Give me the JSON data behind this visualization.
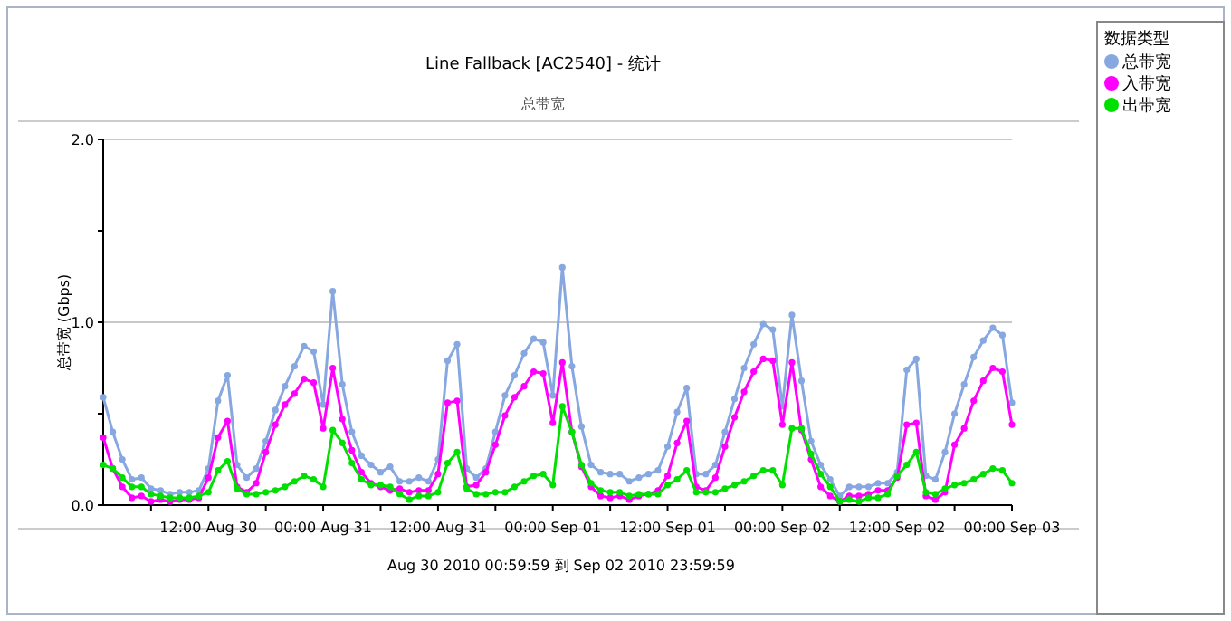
{
  "chart_data": {
    "type": "line",
    "title": "Line Fallback [AC2540] - 统计",
    "subtitle": "总带宽",
    "ylabel": "总带宽 (Gbps)",
    "legend_title": "数据类型",
    "legend": "top right",
    "grid": "y",
    "marker": "circle",
    "line_style": "solid",
    "annotations": [
      "Aug 30 2010  00:59:59 到 Sep 02 2010  23:59:59"
    ],
    "xlim": [
      "2010-08-30T01:00",
      "2010-09-03T00:00"
    ],
    "xticks": [
      {
        "value": "2010-08-30T06:00",
        "label": null
      },
      {
        "value": "2010-08-30T12:00",
        "label": "12:00 Aug 30"
      },
      {
        "value": "2010-08-30T18:00",
        "label": null
      },
      {
        "value": "2010-08-31T00:00",
        "label": "00:00 Aug 31"
      },
      {
        "value": "2010-08-31T06:00",
        "label": null
      },
      {
        "value": "2010-08-31T12:00",
        "label": "12:00 Aug 31"
      },
      {
        "value": "2010-08-31T18:00",
        "label": null
      },
      {
        "value": "2010-09-01T00:00",
        "label": "00:00 Sep 01"
      },
      {
        "value": "2010-09-01T06:00",
        "label": null
      },
      {
        "value": "2010-09-01T12:00",
        "label": "12:00 Sep 01"
      },
      {
        "value": "2010-09-01T18:00",
        "label": null
      },
      {
        "value": "2010-09-02T00:00",
        "label": "00:00 Sep 02"
      },
      {
        "value": "2010-09-02T06:00",
        "label": null
      },
      {
        "value": "2010-09-02T12:00",
        "label": "12:00 Sep 02"
      },
      {
        "value": "2010-09-02T18:00",
        "label": null
      },
      {
        "value": "2010-09-03T00:00",
        "label": "00:00 Sep 03"
      }
    ],
    "ylim": [
      0,
      2
    ],
    "yticks": [
      {
        "value": 0,
        "label": "0.0"
      },
      {
        "value": 0.5,
        "label": null
      },
      {
        "value": 1,
        "label": "1.0"
      },
      {
        "value": 1.5,
        "label": null
      },
      {
        "value": 2,
        "label": "2.0"
      }
    ],
    "x": [
      "2010-08-30T01:00",
      "2010-08-30T02:00",
      "2010-08-30T03:00",
      "2010-08-30T04:00",
      "2010-08-30T05:00",
      "2010-08-30T06:00",
      "2010-08-30T07:00",
      "2010-08-30T08:00",
      "2010-08-30T09:00",
      "2010-08-30T10:00",
      "2010-08-30T11:00",
      "2010-08-30T12:00",
      "2010-08-30T13:00",
      "2010-08-30T14:00",
      "2010-08-30T15:00",
      "2010-08-30T16:00",
      "2010-08-30T17:00",
      "2010-08-30T18:00",
      "2010-08-30T19:00",
      "2010-08-30T20:00",
      "2010-08-30T21:00",
      "2010-08-30T22:00",
      "2010-08-30T23:00",
      "2010-08-31T00:00",
      "2010-08-31T01:00",
      "2010-08-31T02:00",
      "2010-08-31T03:00",
      "2010-08-31T04:00",
      "2010-08-31T05:00",
      "2010-08-31T06:00",
      "2010-08-31T07:00",
      "2010-08-31T08:00",
      "2010-08-31T09:00",
      "2010-08-31T10:00",
      "2010-08-31T11:00",
      "2010-08-31T12:00",
      "2010-08-31T13:00",
      "2010-08-31T14:00",
      "2010-08-31T15:00",
      "2010-08-31T16:00",
      "2010-08-31T17:00",
      "2010-08-31T18:00",
      "2010-08-31T19:00",
      "2010-08-31T20:00",
      "2010-08-31T21:00",
      "2010-08-31T22:00",
      "2010-08-31T23:00",
      "2010-09-01T00:00",
      "2010-09-01T01:00",
      "2010-09-01T02:00",
      "2010-09-01T03:00",
      "2010-09-01T04:00",
      "2010-09-01T05:00",
      "2010-09-01T06:00",
      "2010-09-01T07:00",
      "2010-09-01T08:00",
      "2010-09-01T09:00",
      "2010-09-01T10:00",
      "2010-09-01T11:00",
      "2010-09-01T12:00",
      "2010-09-01T13:00",
      "2010-09-01T14:00",
      "2010-09-01T15:00",
      "2010-09-01T16:00",
      "2010-09-01T17:00",
      "2010-09-01T18:00",
      "2010-09-01T19:00",
      "2010-09-01T20:00",
      "2010-09-01T21:00",
      "2010-09-01T22:00",
      "2010-09-01T23:00",
      "2010-09-02T00:00",
      "2010-09-02T01:00",
      "2010-09-02T02:00",
      "2010-09-02T03:00",
      "2010-09-02T04:00",
      "2010-09-02T05:00",
      "2010-09-02T06:00",
      "2010-09-02T07:00",
      "2010-09-02T08:00",
      "2010-09-02T09:00",
      "2010-09-02T10:00",
      "2010-09-02T11:00",
      "2010-09-02T12:00",
      "2010-09-02T13:00",
      "2010-09-02T14:00",
      "2010-09-02T15:00",
      "2010-09-02T16:00",
      "2010-09-02T17:00",
      "2010-09-02T18:00",
      "2010-09-02T19:00",
      "2010-09-02T20:00",
      "2010-09-02T21:00",
      "2010-09-02T22:00",
      "2010-09-02T23:00",
      "2010-09-03T00:00"
    ],
    "series": [
      {
        "name": "总带宽",
        "color": "#87a7e0",
        "values": [
          0.59,
          0.4,
          0.25,
          0.14,
          0.15,
          0.09,
          0.08,
          0.06,
          0.07,
          0.07,
          0.08,
          0.2,
          0.57,
          0.71,
          0.22,
          0.15,
          0.2,
          0.35,
          0.52,
          0.65,
          0.76,
          0.87,
          0.84,
          0.55,
          1.17,
          0.66,
          0.4,
          0.27,
          0.22,
          0.18,
          0.21,
          0.13,
          0.13,
          0.15,
          0.13,
          0.25,
          0.79,
          0.88,
          0.2,
          0.15,
          0.2,
          0.4,
          0.6,
          0.71,
          0.83,
          0.91,
          0.89,
          0.6,
          1.3,
          0.76,
          0.43,
          0.22,
          0.18,
          0.17,
          0.17,
          0.13,
          0.15,
          0.17,
          0.19,
          0.32,
          0.51,
          0.64,
          0.17,
          0.17,
          0.22,
          0.4,
          0.58,
          0.75,
          0.88,
          0.99,
          0.96,
          0.54,
          1.04,
          0.68,
          0.35,
          0.22,
          0.14,
          0.05,
          0.1,
          0.1,
          0.1,
          0.12,
          0.12,
          0.18,
          0.74,
          0.8,
          0.16,
          0.14,
          0.29,
          0.5,
          0.66,
          0.81,
          0.9,
          0.97,
          0.93,
          0.56
        ]
      },
      {
        "name": "入带宽",
        "color": "#ff00ff",
        "values": [
          0.37,
          0.2,
          0.1,
          0.04,
          0.05,
          0.02,
          0.03,
          0.02,
          0.03,
          0.03,
          0.04,
          0.15,
          0.37,
          0.46,
          0.1,
          0.07,
          0.12,
          0.29,
          0.44,
          0.55,
          0.61,
          0.69,
          0.67,
          0.42,
          0.75,
          0.47,
          0.3,
          0.18,
          0.12,
          0.1,
          0.08,
          0.09,
          0.07,
          0.08,
          0.08,
          0.17,
          0.56,
          0.57,
          0.1,
          0.11,
          0.18,
          0.33,
          0.49,
          0.59,
          0.65,
          0.73,
          0.72,
          0.45,
          0.78,
          0.4,
          0.21,
          0.1,
          0.05,
          0.04,
          0.05,
          0.03,
          0.05,
          0.06,
          0.08,
          0.16,
          0.34,
          0.46,
          0.1,
          0.08,
          0.15,
          0.32,
          0.48,
          0.62,
          0.73,
          0.8,
          0.79,
          0.44,
          0.78,
          0.41,
          0.25,
          0.1,
          0.05,
          0.02,
          0.05,
          0.05,
          0.06,
          0.08,
          0.08,
          0.15,
          0.44,
          0.45,
          0.05,
          0.03,
          0.07,
          0.33,
          0.42,
          0.57,
          0.68,
          0.75,
          0.73,
          0.44
        ]
      },
      {
        "name": "出带宽",
        "color": "#00e000",
        "values": [
          0.22,
          0.2,
          0.15,
          0.1,
          0.1,
          0.06,
          0.05,
          0.04,
          0.04,
          0.04,
          0.05,
          0.07,
          0.19,
          0.24,
          0.09,
          0.06,
          0.06,
          0.07,
          0.08,
          0.1,
          0.13,
          0.16,
          0.14,
          0.1,
          0.41,
          0.34,
          0.23,
          0.14,
          0.11,
          0.11,
          0.1,
          0.06,
          0.03,
          0.05,
          0.05,
          0.07,
          0.23,
          0.29,
          0.09,
          0.06,
          0.06,
          0.07,
          0.07,
          0.1,
          0.13,
          0.16,
          0.17,
          0.11,
          0.54,
          0.4,
          0.22,
          0.12,
          0.08,
          0.07,
          0.07,
          0.05,
          0.06,
          0.06,
          0.06,
          0.11,
          0.14,
          0.19,
          0.07,
          0.07,
          0.07,
          0.09,
          0.11,
          0.13,
          0.16,
          0.19,
          0.19,
          0.11,
          0.42,
          0.42,
          0.28,
          0.17,
          0.1,
          0.02,
          0.03,
          0.02,
          0.04,
          0.04,
          0.06,
          0.16,
          0.22,
          0.29,
          0.07,
          0.06,
          0.09,
          0.11,
          0.12,
          0.14,
          0.17,
          0.2,
          0.19,
          0.12
        ]
      }
    ]
  }
}
